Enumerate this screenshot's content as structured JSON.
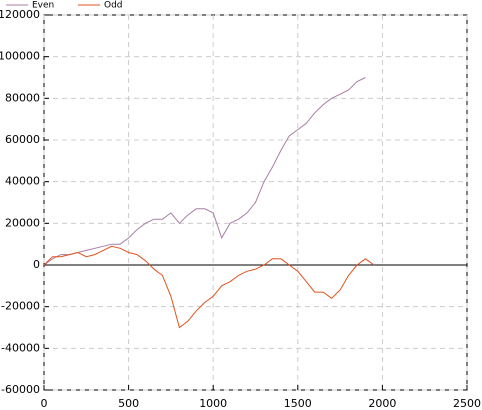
{
  "chart_data": {
    "type": "line",
    "x": [
      0,
      50,
      100,
      150,
      200,
      250,
      300,
      350,
      400,
      450,
      500,
      550,
      600,
      650,
      700,
      750,
      800,
      850,
      900,
      950,
      1000,
      1050,
      1100,
      1150,
      1200,
      1250,
      1300,
      1350,
      1400,
      1450,
      1500,
      1550,
      1600,
      1650,
      1700,
      1750,
      1800,
      1850,
      1900,
      1950
    ],
    "series": [
      {
        "name": "Even",
        "color": "#a97ea6",
        "values": [
          0,
          3000,
          5000,
          5000,
          6000,
          7000,
          8000,
          9000,
          10000,
          10000,
          13000,
          17000,
          20000,
          22000,
          22000,
          25000,
          20000,
          24000,
          27000,
          27000,
          25000,
          13000,
          20000,
          22000,
          25000,
          30000,
          40000,
          47000,
          55000,
          62000,
          65000,
          68000,
          73000,
          77000,
          80000,
          82000,
          84000,
          88000,
          90000,
          null
        ]
      },
      {
        "name": "Odd",
        "color": "#e0531c",
        "values": [
          0,
          4000,
          4000,
          5000,
          6000,
          4000,
          5000,
          7000,
          9000,
          8000,
          6000,
          5000,
          2000,
          -2000,
          -5000,
          -15000,
          -30000,
          -27000,
          -22000,
          -18000,
          -15000,
          -10000,
          -8000,
          -5000,
          -3000,
          -2000,
          0,
          3000,
          3000,
          0,
          -3000,
          -8000,
          -13000,
          -13000,
          -16000,
          -12000,
          -5000,
          0,
          3000,
          0
        ]
      }
    ],
    "xlim": [
      0,
      2500
    ],
    "xticks": [
      0,
      500,
      1000,
      1500,
      2000,
      2500
    ],
    "ylim": [
      -60000,
      120000
    ],
    "yticks": [
      -60000,
      -40000,
      -20000,
      0,
      20000,
      40000,
      60000,
      80000,
      100000,
      120000
    ],
    "hline": 0,
    "grid": true,
    "legend": "top-left"
  }
}
